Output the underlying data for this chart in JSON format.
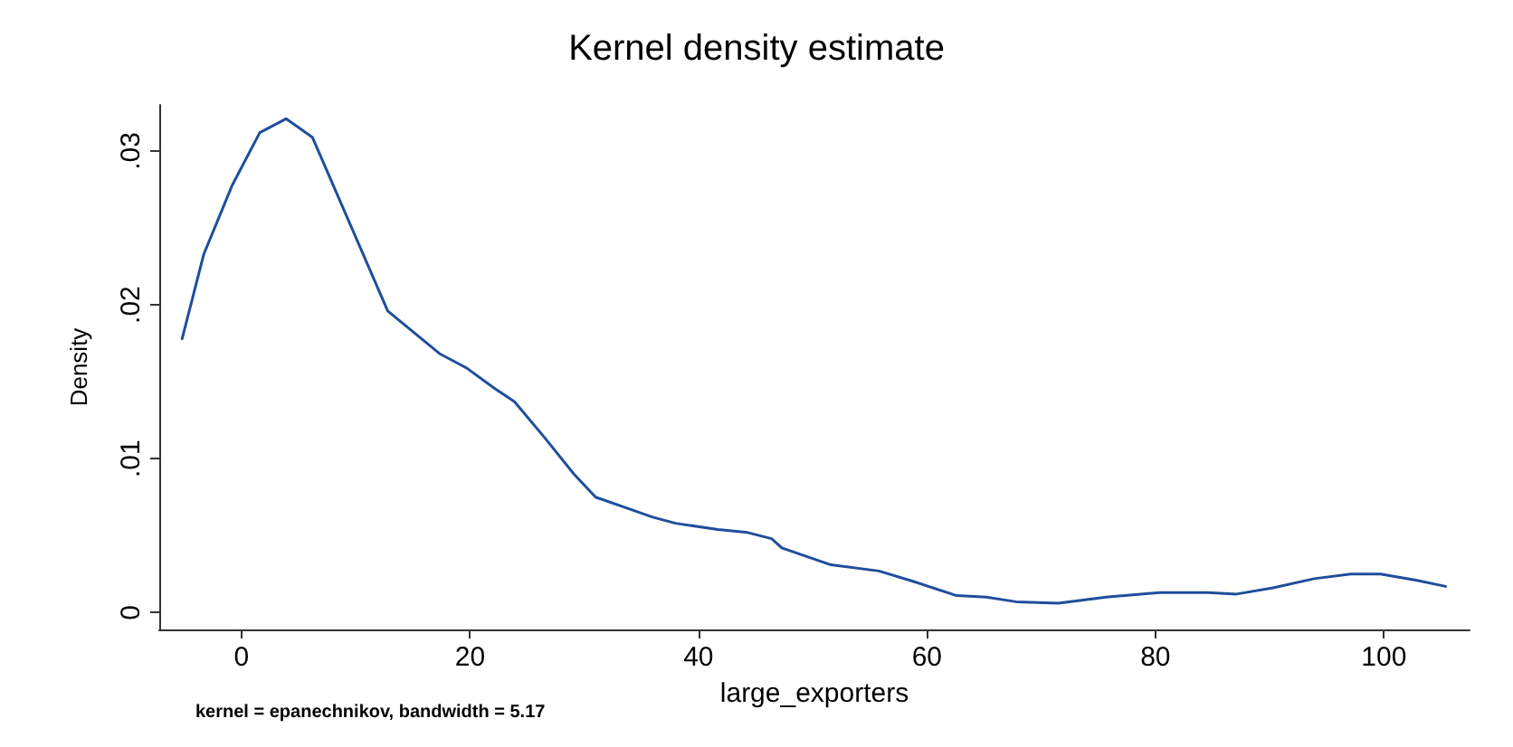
{
  "chart_data": {
    "type": "line",
    "title": "Kernel density estimate",
    "xlabel": "large_exporters",
    "ylabel": "Density",
    "annotations": [
      "kernel = epanechnikov, bandwidth = 5.17"
    ],
    "x": [
      -5.2,
      -3.3,
      -0.8,
      1.6,
      3.9,
      6.2,
      9.3,
      12.8,
      17.4,
      19.7,
      22.1,
      23.9,
      26.5,
      29.1,
      31.0,
      33.3,
      36.0,
      38.0,
      41.7,
      44.3,
      46.4,
      47.3,
      51.6,
      55.8,
      58.9,
      62.6,
      65.2,
      67.8,
      71.5,
      75.7,
      80.4,
      84.6,
      87.1,
      90.3,
      93.9,
      97.1,
      99.7,
      102.8,
      105.4
    ],
    "series": [
      {
        "color": "#1f4e9c",
        "values": [
          0.0178,
          0.0233,
          0.0278,
          0.0312,
          0.0321,
          0.0309,
          0.0256,
          0.0196,
          0.0168,
          0.0159,
          0.0146,
          0.0137,
          0.0114,
          0.009,
          0.0075,
          0.0069,
          0.0062,
          0.0058,
          0.0054,
          0.0052,
          0.0048,
          0.0042,
          0.0031,
          0.0027,
          0.002,
          0.0011,
          0.001,
          0.0007,
          0.0006,
          0.001,
          0.0013,
          0.0013,
          0.0012,
          0.0016,
          0.0022,
          0.0025,
          0.0025,
          0.0021,
          0.0017
        ]
      }
    ],
    "xlim": [
      -7.2,
      107.5
    ],
    "xticks": [
      0,
      20,
      40,
      60,
      80,
      100
    ],
    "ylim": [
      -0.0011,
      0.033
    ],
    "yticks": [
      {
        "value": 0,
        "label": "0"
      },
      {
        "value": 0.01,
        "label": ".01"
      },
      {
        "value": 0.02,
        "label": ".02"
      },
      {
        "value": 0.03,
        "label": ".03"
      }
    ],
    "marker": "none",
    "line_style": "solid"
  }
}
